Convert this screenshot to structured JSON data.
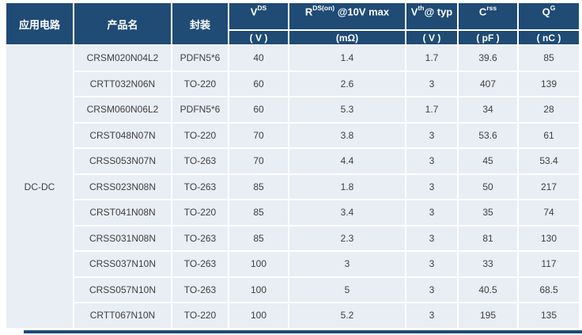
{
  "colors": {
    "header_bg": "#1f4b75",
    "row_bg": "#e9edf4",
    "header_text": "#ffffff",
    "body_text": "#3f3f3f",
    "bottom_bar": "#1f4b75"
  },
  "table": {
    "header": {
      "application_circuit": "应用电路",
      "product_name": "产品名",
      "package": "封装",
      "spec_cols": [
        {
          "base": "V",
          "sup": "DS",
          "rest": "",
          "unit": "( V )"
        },
        {
          "base": "R",
          "sup": "DS(on)",
          "rest": " @10V max",
          "unit": "(mΩ)"
        },
        {
          "base": "V",
          "sup": "th",
          "rest": "@ typ",
          "unit": "( V )"
        },
        {
          "base": "C",
          "sup": "rss",
          "rest": "",
          "unit": "( pF )"
        },
        {
          "base": "Q",
          "sup": "G",
          "rest": "",
          "unit": "( nC )"
        }
      ]
    },
    "application_circuit_value": "DC-DC",
    "rows": [
      [
        "CRSM020N04L2",
        "PDFN5*6",
        "40",
        "1.4",
        "1.7",
        "39.6",
        "85"
      ],
      [
        "CRTT032N06N",
        "TO-220",
        "60",
        "2.6",
        "3",
        "407",
        "139"
      ],
      [
        "CRSM060N06L2",
        "PDFN5*6",
        "60",
        "5.3",
        "1.7",
        "34",
        "28"
      ],
      [
        "CRST048N07N",
        "TO-220",
        "70",
        "3.8",
        "3",
        "53.6",
        "61"
      ],
      [
        "CRSS053N07N",
        "TO-263",
        "70",
        "4.4",
        "3",
        "45",
        "53.4"
      ],
      [
        "CRSS023N08N",
        "TO-263",
        "85",
        "1.8",
        "3",
        "50",
        "217"
      ],
      [
        "CRST041N08N",
        "TO-220",
        "85",
        "3.4",
        "3",
        "35",
        "74"
      ],
      [
        "CRSS031N08N",
        "TO-263",
        "85",
        "2.3",
        "3",
        "81",
        "130"
      ],
      [
        "CRSS037N10N",
        "TO-263",
        "100",
        "3",
        "3",
        "33",
        "117"
      ],
      [
        "CRSS057N10N",
        "TO-263",
        "100",
        "5",
        "3",
        "40.5",
        "68.5"
      ],
      [
        "CRTT067N10N",
        "TO-220",
        "100",
        "5.2",
        "3",
        "195",
        "135"
      ]
    ]
  }
}
